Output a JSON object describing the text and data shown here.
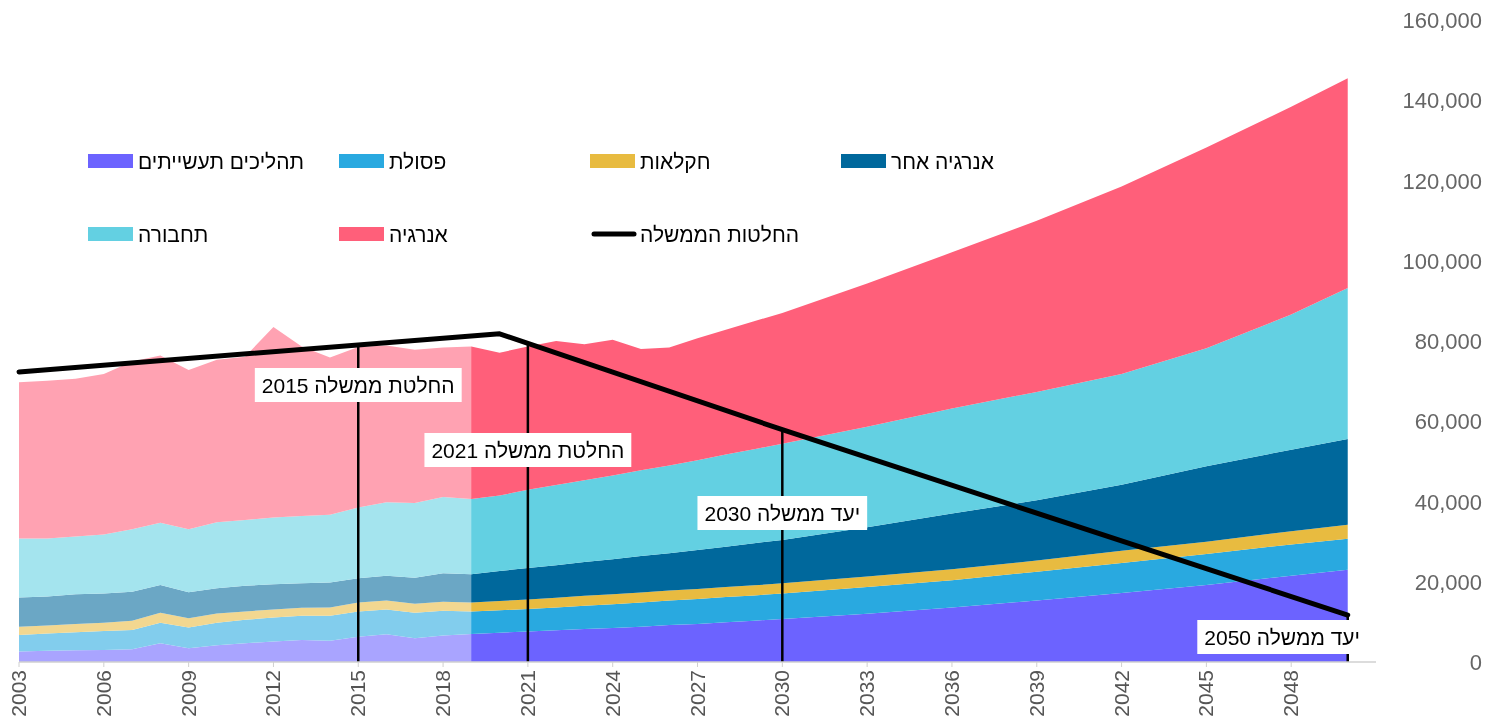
{
  "chart_data": {
    "type": "area",
    "stacked": true,
    "x": [
      2003,
      2004,
      2005,
      2006,
      2007,
      2008,
      2009,
      2010,
      2011,
      2012,
      2013,
      2014,
      2015,
      2016,
      2017,
      2018,
      2019,
      2020,
      2021,
      2022,
      2023,
      2024,
      2025,
      2026,
      2027,
      2028,
      2029,
      2030,
      2033,
      2036,
      2039,
      2042,
      2045,
      2048,
      2050
    ],
    "xlim": [
      2003,
      2051
    ],
    "xticks": [
      2003,
      2006,
      2009,
      2012,
      2015,
      2018,
      2021,
      2024,
      2027,
      2030,
      2033,
      2036,
      2039,
      2042,
      2045,
      2048
    ],
    "ylim": [
      0,
      160000
    ],
    "yticks": [
      0,
      {
        "value": 20000,
        "label": "20,000"
      },
      {
        "value": 40000,
        "label": "40,000"
      },
      {
        "value": 60000,
        "label": "60,000"
      },
      {
        "value": 80000,
        "label": "80,000"
      },
      {
        "value": 100000,
        "label": "100,000"
      },
      {
        "value": 120000,
        "label": "120,000"
      },
      {
        "value": 140000,
        "label": "140,000"
      },
      {
        "value": 160000,
        "label": "160,000"
      }
    ],
    "legend": "top left",
    "bands": [
      {
        "axis": "x",
        "from": 2003,
        "to": 2019,
        "color": "#ffffff"
      }
    ],
    "ref_lines": [
      {
        "axis": "x",
        "value": 2015,
        "label": "החלטת ממשלה 2015",
        "color": "#000000"
      },
      {
        "axis": "x",
        "value": 2021,
        "label": "החלטת ממשלה 2021",
        "color": "#000000"
      },
      {
        "axis": "x",
        "value": 2030,
        "label": "יעד ממשלה 2030",
        "color": "#000000"
      },
      {
        "axis": "x",
        "value": 2050,
        "label": "יעד ממשלה 2050",
        "color": "#000000"
      }
    ],
    "series": [
      {
        "name": "תהליכים תעשייתים",
        "color": "#6c63ff",
        "values": [
          2600,
          2800,
          2900,
          3000,
          3200,
          4700,
          3400,
          4200,
          4700,
          5100,
          5500,
          5300,
          6300,
          6900,
          5900,
          6600,
          7000,
          7300,
          7600,
          7900,
          8200,
          8500,
          8800,
          9200,
          9500,
          9900,
          10300,
          10700,
          12000,
          13600,
          15300,
          17200,
          19200,
          21500,
          23000
        ]
      },
      {
        "name": "פסולת",
        "color": "#29a9e0",
        "values": [
          4100,
          4300,
          4500,
          4700,
          4800,
          5100,
          5200,
          5600,
          5800,
          6000,
          6000,
          6200,
          6300,
          6200,
          6400,
          6200,
          5600,
          5600,
          5600,
          5700,
          5800,
          5900,
          6000,
          6100,
          6200,
          6300,
          6300,
          6400,
          6700,
          6800,
          7200,
          7500,
          7700,
          7800,
          7700
        ]
      },
      {
        "name": "חקלאות",
        "color": "#e8bb40",
        "values": [
          2100,
          2000,
          2100,
          2100,
          2300,
          2500,
          2300,
          2300,
          2100,
          2000,
          2000,
          2100,
          2200,
          2200,
          2200,
          2200,
          2200,
          2300,
          2400,
          2400,
          2500,
          2500,
          2500,
          2500,
          2500,
          2500,
          2500,
          2500,
          2600,
          2700,
          2800,
          3000,
          3100,
          3300,
          3500
        ]
      },
      {
        "name": "אנרגיה אחר",
        "color": "#00689c",
        "values": [
          7300,
          7200,
          7400,
          7300,
          7200,
          6900,
          6500,
          6300,
          6400,
          6300,
          6100,
          6200,
          6100,
          6200,
          6500,
          7100,
          7100,
          7500,
          7800,
          8100,
          8400,
          8700,
          9100,
          9300,
          9700,
          10000,
          10500,
          10800,
          12300,
          13900,
          15000,
          16500,
          18800,
          20300,
          21400
        ]
      },
      {
        "name": "תחבורה",
        "color": "#63d0e2",
        "values": [
          14700,
          14500,
          14400,
          14700,
          15600,
          15500,
          15700,
          16400,
          16400,
          16600,
          16800,
          16900,
          17600,
          18300,
          18600,
          19000,
          18700,
          18800,
          19500,
          20000,
          20400,
          20900,
          21400,
          21900,
          22400,
          23000,
          23400,
          24000,
          25000,
          26200,
          27000,
          27600,
          29400,
          33700,
          37600
        ]
      },
      {
        "name": "אנרגיה",
        "color": "#ff5f7a",
        "values": [
          38900,
          39300,
          39300,
          40000,
          41800,
          41700,
          39700,
          40500,
          40700,
          47500,
          42200,
          39200,
          40000,
          39100,
          38200,
          37300,
          38000,
          35600,
          35700,
          35900,
          33900,
          33800,
          30200,
          29400,
          30400,
          31100,
          31900,
          32600,
          35700,
          38900,
          42700,
          46700,
          50000,
          51800,
          52300
        ]
      },
      {
        "name": "החלטות הממשלה",
        "type": "line",
        "color": "#000000",
        "line_style": "solid",
        "x": [
          2003,
          2020,
          2030,
          2050
        ],
        "values": [
          72300,
          81800,
          57900,
          11700
        ]
      }
    ]
  }
}
